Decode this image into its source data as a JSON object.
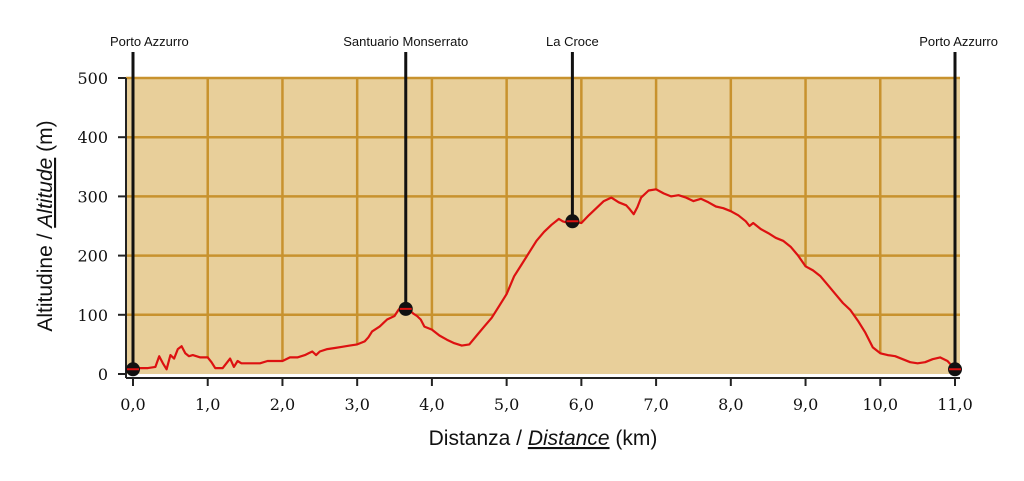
{
  "chart_data": {
    "type": "area",
    "xlabel_prefix": "Distanza / ",
    "xlabel_italic": "Distance",
    "xlabel_suffix": " (km)",
    "ylabel_prefix": "Altitudine / ",
    "ylabel_italic": "Altitude",
    "ylabel_suffix": " (m)",
    "xlim": [
      0,
      11
    ],
    "ylim": [
      0,
      500
    ],
    "x_ticks": [
      "0,0",
      "1,0",
      "2,0",
      "3,0",
      "4,0",
      "5,0",
      "6,0",
      "7,0",
      "8,0",
      "9,0",
      "10,0",
      "11,0"
    ],
    "y_ticks": [
      "0",
      "100",
      "200",
      "300",
      "400",
      "500"
    ],
    "grid": true,
    "colors": {
      "area": "#e8cf9a",
      "grid": "#c8922e",
      "line": "#dd1111",
      "marker": "#111111"
    },
    "waypoints": [
      {
        "name": "Porto Azzurro",
        "x": 0.0,
        "y": 8
      },
      {
        "name": "Santuario Monserrato",
        "x": 3.65,
        "y": 110
      },
      {
        "name": "La Croce",
        "x": 5.88,
        "y": 258
      },
      {
        "name": "Porto Azzurro",
        "x": 11.0,
        "y": 8
      }
    ],
    "series": [
      {
        "x": [
          0,
          0.1,
          0.2,
          0.3,
          0.35,
          0.4,
          0.45,
          0.5,
          0.55,
          0.6,
          0.65,
          0.7,
          0.75,
          0.8,
          0.9,
          1.0,
          1.05,
          1.1,
          1.2,
          1.3,
          1.35,
          1.4,
          1.45,
          1.5,
          1.6,
          1.7,
          1.8,
          1.9,
          2.0,
          2.1,
          2.2,
          2.3,
          2.35,
          2.4,
          2.45,
          2.5,
          2.6,
          2.7,
          2.8,
          2.9,
          3.0,
          3.1,
          3.15,
          3.2,
          3.3,
          3.35,
          3.4,
          3.5,
          3.55,
          3.6,
          3.65,
          3.7,
          3.75,
          3.8,
          3.85,
          3.9,
          4.0,
          4.1,
          4.2,
          4.3,
          4.4,
          4.5,
          4.6,
          4.7,
          4.8,
          4.9,
          5.0,
          5.1,
          5.2,
          5.3,
          5.4,
          5.5,
          5.6,
          5.7,
          5.75,
          5.8,
          5.88,
          5.95,
          6.0,
          6.1,
          6.2,
          6.3,
          6.4,
          6.5,
          6.6,
          6.65,
          6.7,
          6.75,
          6.8,
          6.9,
          7.0,
          7.1,
          7.2,
          7.3,
          7.4,
          7.5,
          7.6,
          7.7,
          7.8,
          7.9,
          8.0,
          8.1,
          8.2,
          8.25,
          8.3,
          8.4,
          8.5,
          8.6,
          8.7,
          8.8,
          8.9,
          9.0,
          9.1,
          9.2,
          9.3,
          9.4,
          9.5,
          9.6,
          9.7,
          9.8,
          9.9,
          10.0,
          10.1,
          10.2,
          10.3,
          10.4,
          10.5,
          10.6,
          10.7,
          10.8,
          10.9,
          11.0
        ],
        "y": [
          8,
          10,
          10,
          12,
          30,
          18,
          8,
          32,
          26,
          42,
          47,
          35,
          30,
          32,
          28,
          28,
          20,
          10,
          10,
          26,
          12,
          22,
          18,
          18,
          18,
          18,
          22,
          22,
          22,
          28,
          28,
          32,
          35,
          38,
          32,
          38,
          42,
          44,
          46,
          48,
          50,
          55,
          62,
          72,
          80,
          86,
          92,
          98,
          108,
          115,
          110,
          108,
          102,
          98,
          92,
          80,
          75,
          65,
          58,
          52,
          48,
          50,
          65,
          80,
          95,
          115,
          135,
          165,
          185,
          205,
          225,
          240,
          252,
          262,
          258,
          256,
          258,
          256,
          255,
          268,
          280,
          292,
          298,
          290,
          285,
          278,
          270,
          282,
          298,
          310,
          312,
          305,
          300,
          302,
          298,
          292,
          296,
          290,
          283,
          280,
          275,
          268,
          258,
          250,
          255,
          245,
          238,
          230,
          225,
          215,
          200,
          182,
          175,
          165,
          150,
          135,
          120,
          108,
          90,
          70,
          45,
          35,
          32,
          30,
          25,
          20,
          18,
          20,
          25,
          28,
          22,
          8
        ]
      }
    ]
  }
}
